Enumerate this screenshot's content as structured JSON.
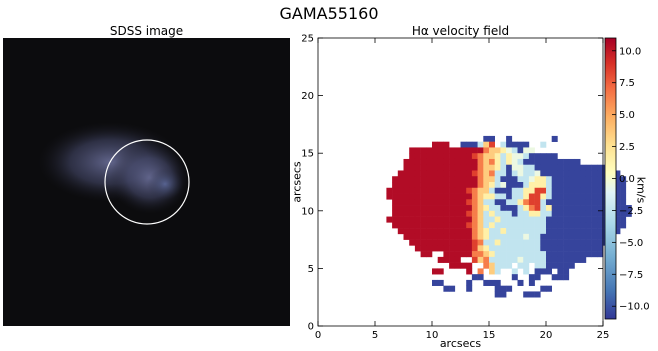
{
  "title": "GAMA55160",
  "panels": {
    "left_title": "SDSS image",
    "right_title": "Hα velocity field"
  },
  "colors": {
    "sky": "#0b0b0d",
    "galaxy_glow": "#5a5f86",
    "aperture_circle": "#ffffff",
    "cmap_low": "#313695",
    "cmap_mid": "#f7f7c6",
    "cmap_high": "#a50026"
  },
  "chart_data": {
    "type": "heatmap",
    "title": "Hα velocity field",
    "xlabel": "arcsecs",
    "ylabel": "arcsecs",
    "xlim": [
      0,
      25
    ],
    "ylim": [
      0,
      25
    ],
    "xticks": [
      0,
      5,
      10,
      15,
      20,
      25
    ],
    "yticks": [
      0,
      5,
      10,
      15,
      20,
      25
    ],
    "colorbar": {
      "label": "km/s",
      "vmin": -11,
      "vmax": 11,
      "ticks": [
        10.0,
        7.5,
        5.0,
        2.5,
        0.0,
        -2.5,
        -5.0,
        -7.5,
        -10.0
      ],
      "tick_labels": [
        "10.0",
        "7.5",
        "5.0",
        "2.5",
        "0.0",
        "−2.5",
        "−5.0",
        "−7.5",
        "−10.0"
      ]
    },
    "cell_size": 0.5,
    "x_start": 4.5,
    "y_top": 17.0,
    "rows": [
      "..................................................",
      "....................--..-.......-.................",
      "...........,,,..---~?+.~----..~..................",
      ".......,,,,,,,,,,,,,#??^=~-==....................",
      ".......,,,,,,,,,,,+#??^~^==~-----................",
      "......,,,,,,,,,,,,,#?#^~^=~----------............",
      "......,,,,,,,,,,,,,#??^~-==~~-------------.......",
      ".....,,,,,,,,,,,,,+#?#~~-~=~~=--------------......",
      "....,,,,,,,,,,,,,,,#??~---~~=^^~-------------.....",
      "....,,,,,,,,,,,,,,,#?^~=---~^^^~-------------.....",
      "...,,,,,,,,,,,,,,+#??~---~~^^++~-------------.....",
      "...,,,,,,,,,,,,,,,#?^^~~-~~^++^~-------------.....",
      "....,,,,,,,,,,,,,+#?~~--~~^#++~--------------.....",
      "....,,,,,,,,,,,,,,#?^~~---~^#+~^--------------....",
      "....,,,,,,,,,,,,,+#?~^~~~-~~^^~~--------------....",
      "...,,,,,,,,,,,,,,,#?~~^~~~~~~~~--------------.....",
      "....,,,,,,,,,,,,,+#?~^~~~~~~~~~--------------.....",
      ".....,,,,,,,,,,,,,#?^~~^~~~~~~~-------------......",
      "......,,,,,,,,,,,,#?^~~~~~~=~~-------------.......",
      ".......,,,,,,,,,,,+#~~^~~~~~~~------------........",
      "........,,,,,,,,,,+?^~~~~~~~~~-----------.........",
      ".........,,..,,,,,##?^~~~~~~~~~----------.........",
      "............,,,,..+?#~~~~~=~~~~-------............",
      "..............,,,,..#?~~~.~~.~~-----..............",
      "...........,,....,.#.?~..~.~.---.--...............",
      "..................--.....-..--..---...............",
      "...........--....-..---...-.-......................",
      ".............--..-....---.....--..................",
      "......................--...---.....................",
      "..................................................",
      ".................................................."
    ],
    "legend_of_symbols": {
      ",": 10.5,
      "+": 8.5,
      "#": 6.5,
      "?": 3.5,
      "^": 1.5,
      "=": -0.5,
      "~": -2.5,
      "-": -10.5,
      ".": null
    }
  }
}
